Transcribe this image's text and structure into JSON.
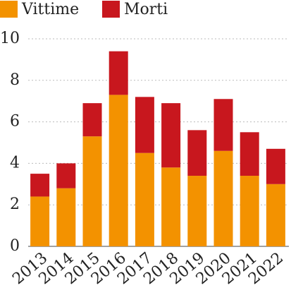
{
  "chart_data": {
    "type": "stacked_bar",
    "categories": [
      "2013",
      "2014",
      "2015",
      "2016",
      "2017",
      "2018",
      "2019",
      "2020",
      "2021",
      "2022"
    ],
    "series": [
      {
        "name": "Vittime",
        "color": "#f39200",
        "values": [
          2.4,
          2.8,
          5.3,
          7.3,
          4.5,
          3.8,
          3.4,
          4.6,
          3.4,
          3.0
        ]
      },
      {
        "name": "Morti",
        "color": "#c8171e",
        "values": [
          1.1,
          1.2,
          1.6,
          2.1,
          2.7,
          3.1,
          2.2,
          2.5,
          2.1,
          1.7
        ]
      }
    ],
    "ylim": [
      0,
      10
    ],
    "yticks": [
      0,
      2,
      4,
      6,
      8,
      10
    ],
    "grid": true,
    "legend": "top"
  }
}
